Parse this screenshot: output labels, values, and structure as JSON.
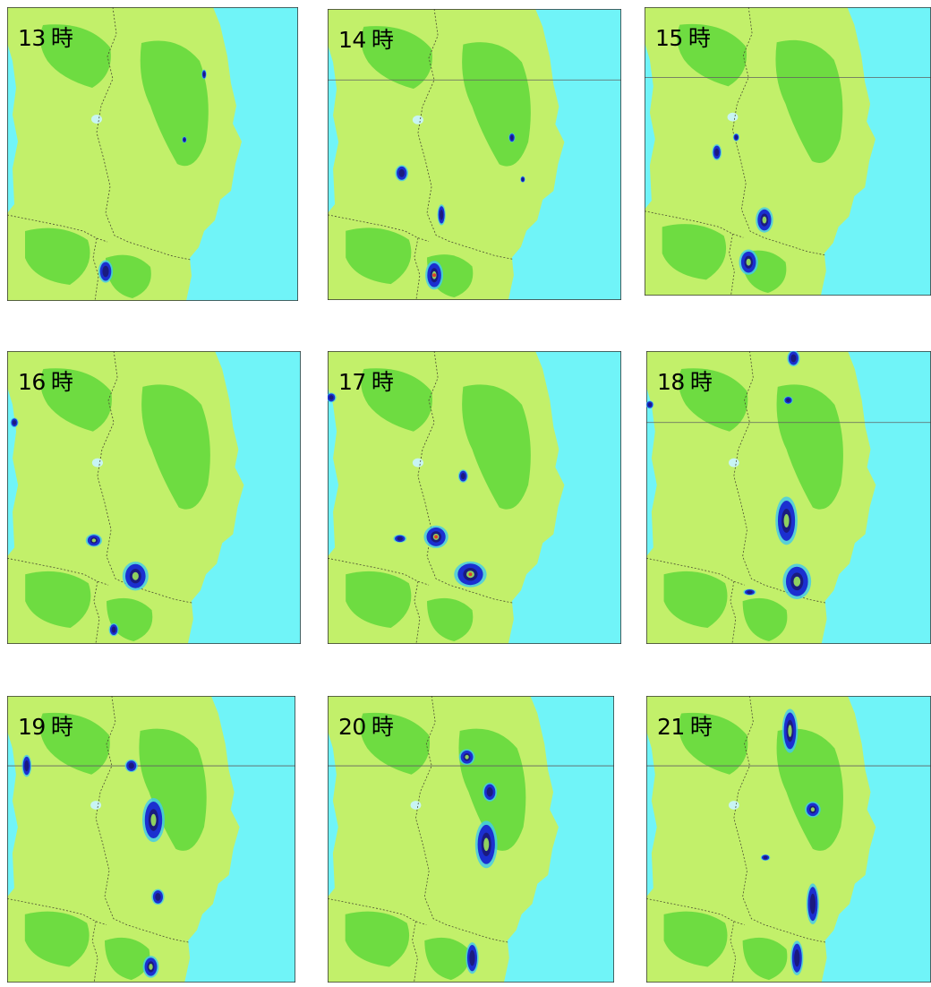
{
  "title": "",
  "kanji_hour": "時",
  "colors": {
    "sea": "#70f4f8",
    "land": "#c2f06a",
    "mountain": "#5fd83a",
    "lake": "#c8f4f4",
    "boundary": "#4a4a30",
    "rain_light": "#3fc9f0",
    "rain_moderate": "#1b2fd0",
    "rain_heavy": "#1a1a80",
    "rain_intense": "#8fd060",
    "rain_extreme": "#e0402c"
  },
  "panels": [
    {
      "hour": "13",
      "rain_level": "light"
    },
    {
      "hour": "14",
      "rain_level": "light"
    },
    {
      "hour": "15",
      "rain_level": "moderate"
    },
    {
      "hour": "16",
      "rain_level": "moderate"
    },
    {
      "hour": "17",
      "rain_level": "heavy"
    },
    {
      "hour": "18",
      "rain_level": "heavy"
    },
    {
      "hour": "19",
      "rain_level": "heavy"
    },
    {
      "hour": "20",
      "rain_level": "heavy"
    },
    {
      "hour": "21",
      "rain_level": "heavy"
    }
  ]
}
